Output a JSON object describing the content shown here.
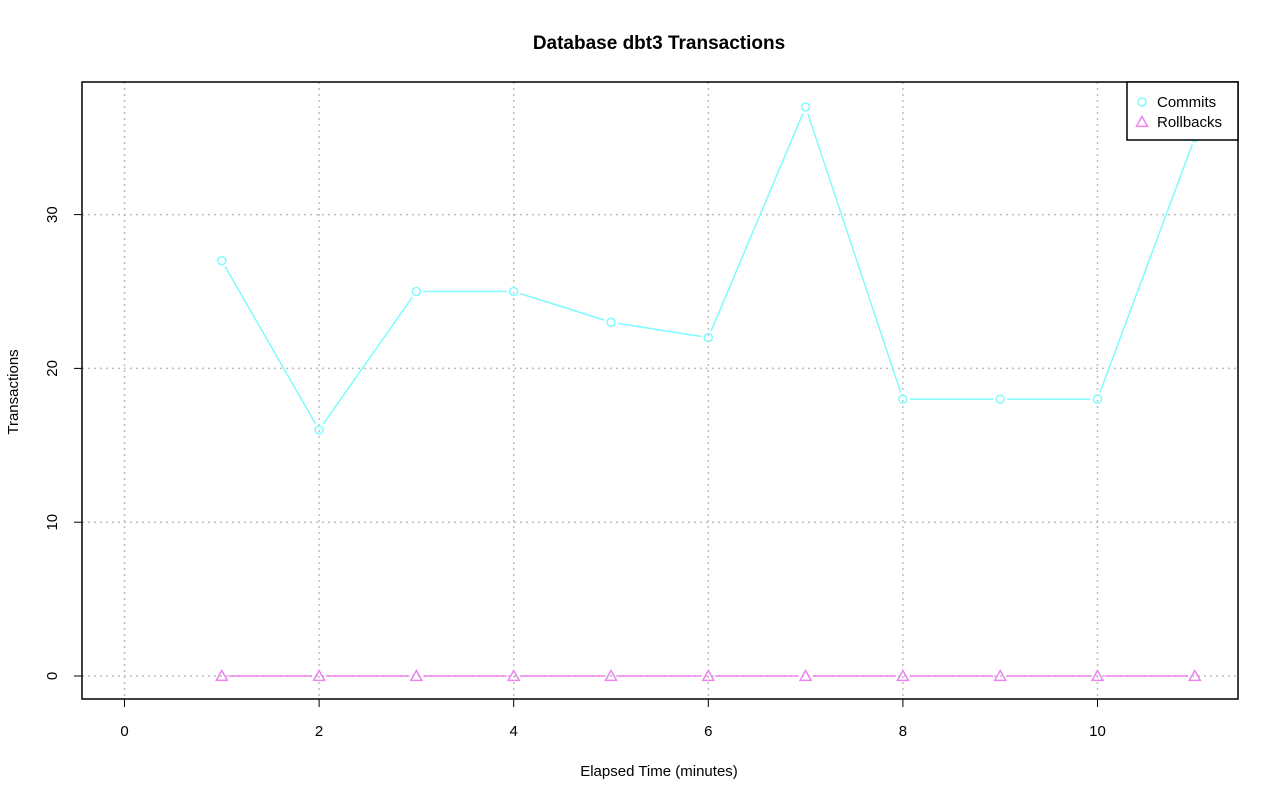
{
  "chart_data": {
    "type": "line",
    "title": "Database dbt3 Transactions",
    "xlabel": "Elapsed Time (minutes)",
    "ylabel": "Transactions",
    "xlim": [
      0,
      11
    ],
    "ylim": [
      0,
      37
    ],
    "x_ticks": [
      0,
      2,
      4,
      6,
      8,
      10
    ],
    "y_ticks": [
      0,
      10,
      20,
      30
    ],
    "grid": true,
    "legend_position": "top-right",
    "x": [
      1,
      2,
      3,
      4,
      5,
      6,
      7,
      8,
      9,
      10,
      11
    ],
    "series": [
      {
        "name": "Commits",
        "color": "#7ffcff",
        "marker": "circle",
        "values": [
          27,
          16,
          25,
          25,
          23,
          22,
          37,
          18,
          18,
          18,
          35
        ]
      },
      {
        "name": "Rollbacks",
        "color": "#ee82ee",
        "marker": "triangle",
        "values": [
          0,
          0,
          0,
          0,
          0,
          0,
          0,
          0,
          0,
          0,
          0
        ]
      }
    ]
  }
}
